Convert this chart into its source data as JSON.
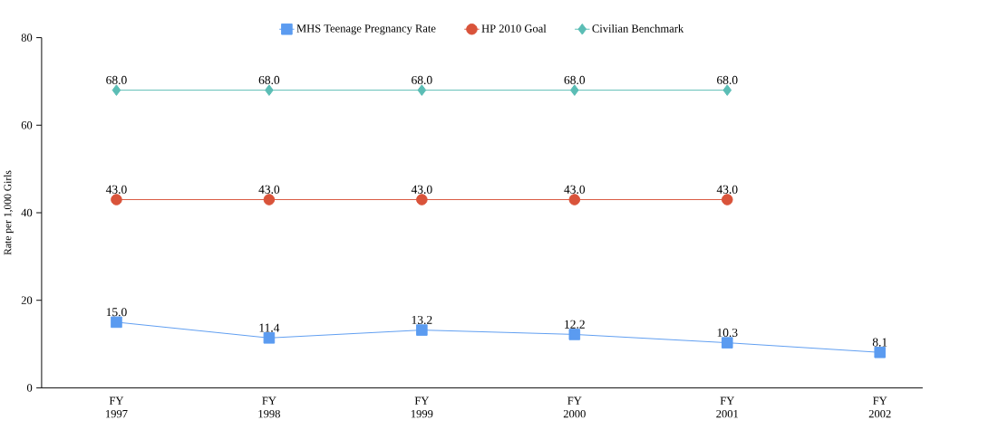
{
  "chart_data": {
    "type": "line",
    "ylabel": "Rate per 1,000 Girls",
    "categories": [
      "FY 1997",
      "FY 1998",
      "FY 1999",
      "FY 2000",
      "FY 2001",
      "FY 2002"
    ],
    "series": [
      {
        "name": "MHS Teenage Pregnancy Rate",
        "color": "#5b9bf0",
        "marker": "square",
        "values": [
          15.0,
          11.4,
          13.2,
          12.2,
          10.3,
          8.1
        ],
        "value_labels": [
          "15.0",
          "11.4",
          "13.2",
          "12.2",
          "10.3",
          "8.1"
        ]
      },
      {
        "name": "HP 2010 Goal",
        "color": "#d9533a",
        "marker": "circle",
        "values": [
          43.0,
          43.0,
          43.0,
          43.0,
          43.0,
          null
        ],
        "value_labels": [
          "43.0",
          "43.0",
          "43.0",
          "43.0",
          "43.0",
          null
        ]
      },
      {
        "name": "Civilian Benchmark",
        "color": "#5bbdb5",
        "marker": "diamond",
        "values": [
          68.0,
          68.0,
          68.0,
          68.0,
          68.0,
          null
        ],
        "value_labels": [
          "68.0",
          "68.0",
          "68.0",
          "68.0",
          "68.0",
          null
        ]
      }
    ],
    "ylim": [
      0,
      80
    ],
    "yticks": [
      0,
      20,
      40,
      60,
      80
    ],
    "grid": false,
    "legend": "top",
    "line_style": "solid"
  }
}
